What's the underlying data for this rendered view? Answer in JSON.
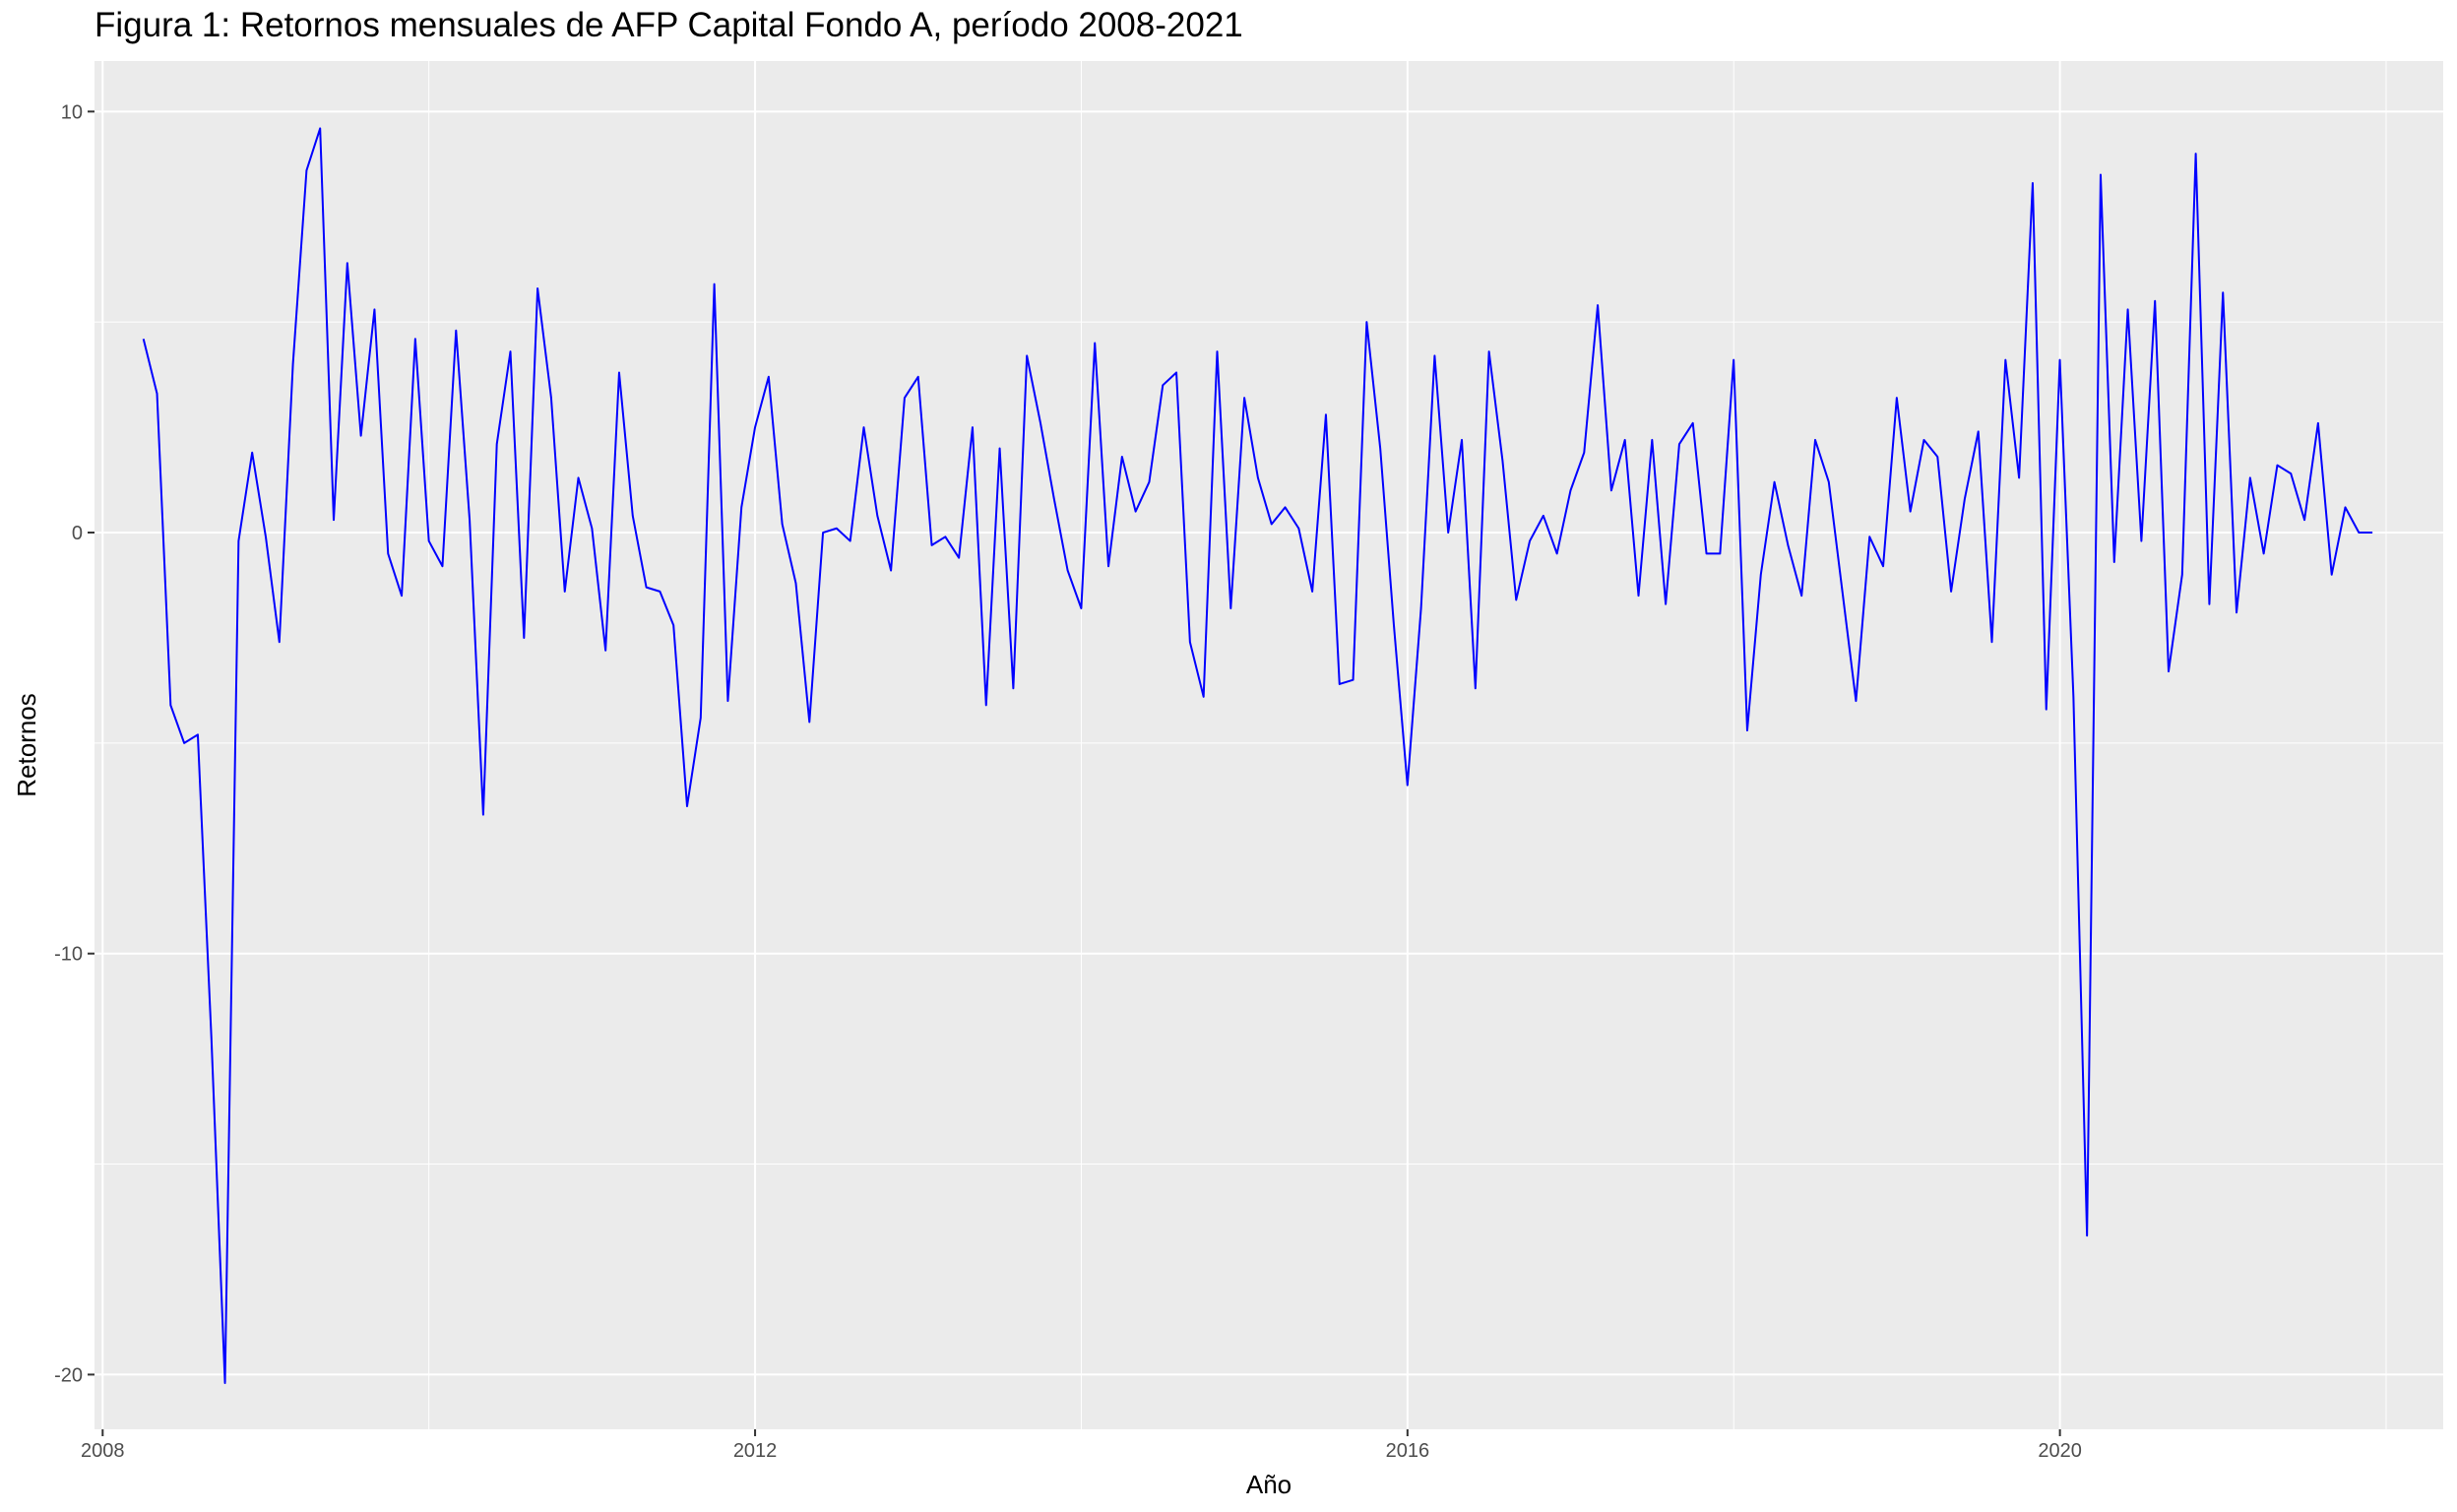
{
  "chart_data": {
    "type": "line",
    "title": "Figura 1: Retornos mensuales de AFP Capital Fondo A, período 2008-2021",
    "xlabel": "Año",
    "ylabel": "Retornos",
    "xlim": [
      2007.95,
      2022.35
    ],
    "ylim": [
      -21.3,
      11.2
    ],
    "x_ticks": [
      2008,
      2012,
      2016,
      2020
    ],
    "x_tick_labels": [
      "2008",
      "2012",
      "2016",
      "2020"
    ],
    "y_ticks": [
      -20,
      -10,
      0,
      10
    ],
    "y_tick_labels": [
      "-20",
      "-10",
      "0",
      "10"
    ],
    "grid": true,
    "legend": "none",
    "series": [
      {
        "color": "#0000ff",
        "x_start": 2008.25,
        "x_step": 0.08333,
        "values": [
          4.6,
          3.3,
          -4.1,
          -5.0,
          -4.8,
          -12.0,
          -20.2,
          -0.2,
          1.9,
          -0.1,
          -2.6,
          4.0,
          8.6,
          9.6,
          0.3,
          6.4,
          2.3,
          5.3,
          -0.5,
          -1.5,
          4.6,
          -0.2,
          -0.8,
          4.8,
          0.3,
          -6.7,
          2.1,
          4.3,
          -2.5,
          5.8,
          3.2,
          -1.4,
          1.3,
          0.1,
          -2.8,
          3.8,
          0.4,
          -1.3,
          -1.4,
          -2.2,
          -6.5,
          -4.4,
          5.9,
          -4.0,
          0.6,
          2.5,
          3.7,
          0.2,
          -1.2,
          -4.5,
          0.0,
          0.1,
          -0.2,
          2.5,
          0.4,
          -0.9,
          3.2,
          3.7,
          -0.3,
          -0.1,
          -0.6,
          2.5,
          -4.1,
          2.0,
          -3.7,
          4.2,
          2.6,
          0.8,
          -0.9,
          -1.8,
          4.5,
          -0.8,
          1.8,
          0.5,
          1.2,
          3.5,
          3.8,
          -2.6,
          -3.9,
          4.3,
          -1.8,
          3.2,
          1.3,
          0.2,
          0.6,
          0.1,
          -1.4,
          2.8,
          -3.6,
          -3.5,
          5.0,
          2.0,
          -2.2,
          -6.0,
          -1.8,
          4.2,
          0.0,
          2.2,
          -3.7,
          4.3,
          1.7,
          -1.6,
          -0.2,
          0.4,
          -0.5,
          1.0,
          1.9,
          5.4,
          1.0,
          2.2,
          -1.5,
          2.2,
          -1.7,
          2.1,
          2.6,
          -0.5,
          -0.5,
          4.1,
          -4.7,
          -1.0,
          1.2,
          -0.3,
          -1.5,
          2.2,
          1.2,
          -1.4,
          -4.0,
          -0.1,
          -0.8,
          3.2,
          0.5,
          2.2,
          1.8,
          -1.4,
          0.8,
          2.4,
          -2.6,
          4.1,
          1.3,
          8.3,
          -4.2,
          4.1,
          -3.9,
          -16.7,
          8.5,
          -0.7,
          5.3,
          -0.2,
          5.5,
          -3.3,
          -1.0,
          9.0,
          -1.7,
          5.7,
          -1.9,
          1.3,
          -0.5,
          1.6,
          1.4,
          0.3,
          2.6,
          -1.0,
          0.6,
          0.0,
          0.0
        ]
      }
    ]
  }
}
